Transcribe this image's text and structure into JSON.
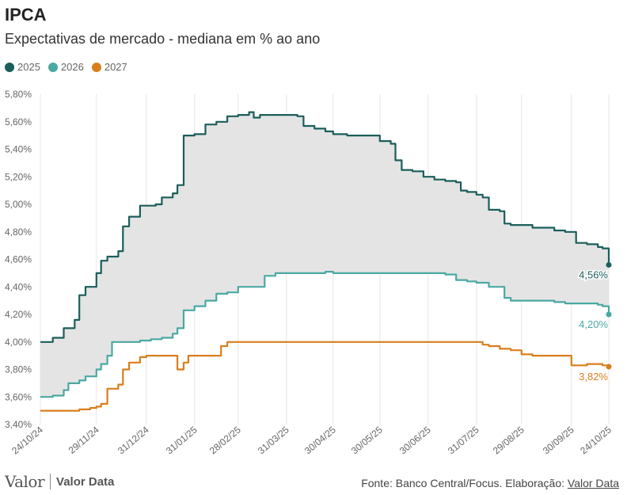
{
  "header": {
    "title": "IPCA",
    "subtitle": "Expectativas de mercado - mediana em % ao ano"
  },
  "legend": [
    {
      "label": "2025",
      "color": "#1b5e5a"
    },
    {
      "label": "2026",
      "color": "#4aa8a2"
    },
    {
      "label": "2027",
      "color": "#d97e1c"
    }
  ],
  "footer": {
    "logo_text": "Valor",
    "logo_brand": "Valor Data",
    "source_prefix": "Fonte: Banco Central/Focus. Elaboração: ",
    "source_link": "Valor Data"
  },
  "chart_data": {
    "type": "line",
    "title": "IPCA",
    "subtitle": "Expectativas de mercado - mediana em % ao ano",
    "xlabel": "",
    "ylabel": "",
    "ylim": [
      3.4,
      5.8
    ],
    "yticks": [
      3.4,
      3.6,
      3.8,
      4.0,
      4.2,
      4.4,
      4.6,
      4.8,
      5.0,
      5.2,
      5.4,
      5.6,
      5.8
    ],
    "ytick_labels": [
      "3,40%",
      "3,60%",
      "3,80%",
      "4,00%",
      "4,20%",
      "4,40%",
      "4,60%",
      "4,80%",
      "5,00%",
      "5,20%",
      "5,40%",
      "5,60%",
      "5,80%"
    ],
    "xlim": [
      "2024-10-24",
      "2025-10-24"
    ],
    "xticks": [
      "2024-10-24",
      "2024-11-29",
      "2024-12-31",
      "2025-01-31",
      "2025-02-28",
      "2025-03-31",
      "2025-04-30",
      "2025-05-30",
      "2025-06-30",
      "2025-07-31",
      "2025-08-29",
      "2025-09-30",
      "2025-10-24"
    ],
    "xtick_labels": [
      "24/10/24",
      "29/11/24",
      "31/12/24",
      "31/01/25",
      "28/02/25",
      "31/03/25",
      "30/04/25",
      "30/05/25",
      "30/06/25",
      "31/07/25",
      "29/08/25",
      "30/09/25",
      "24/10/25"
    ],
    "grid": "vertical",
    "band_between": [
      "2025",
      "2026"
    ],
    "band_color": "#e4e4e4",
    "series": [
      {
        "name": "2025",
        "color": "#1b5e5a",
        "end_label": "4,56%",
        "points": [
          [
            "2024-10-24",
            4.0
          ],
          [
            "2024-11-01",
            4.03
          ],
          [
            "2024-11-08",
            4.1
          ],
          [
            "2024-11-15",
            4.16
          ],
          [
            "2024-11-18",
            4.34
          ],
          [
            "2024-11-22",
            4.4
          ],
          [
            "2024-11-29",
            4.5
          ],
          [
            "2024-12-02",
            4.59
          ],
          [
            "2024-12-06",
            4.62
          ],
          [
            "2024-12-13",
            4.66
          ],
          [
            "2024-12-16",
            4.84
          ],
          [
            "2024-12-20",
            4.91
          ],
          [
            "2024-12-27",
            4.99
          ],
          [
            "2024-12-31",
            4.99
          ],
          [
            "2025-01-06",
            5.0
          ],
          [
            "2025-01-10",
            5.05
          ],
          [
            "2025-01-17",
            5.08
          ],
          [
            "2025-01-20",
            5.14
          ],
          [
            "2025-01-24",
            5.5
          ],
          [
            "2025-01-31",
            5.51
          ],
          [
            "2025-02-07",
            5.58
          ],
          [
            "2025-02-14",
            5.6
          ],
          [
            "2025-02-21",
            5.64
          ],
          [
            "2025-02-28",
            5.65
          ],
          [
            "2025-03-07",
            5.67
          ],
          [
            "2025-03-10",
            5.63
          ],
          [
            "2025-03-14",
            5.65
          ],
          [
            "2025-03-21",
            5.65
          ],
          [
            "2025-03-31",
            5.65
          ],
          [
            "2025-04-07",
            5.64
          ],
          [
            "2025-04-11",
            5.57
          ],
          [
            "2025-04-18",
            5.55
          ],
          [
            "2025-04-25",
            5.53
          ],
          [
            "2025-04-30",
            5.51
          ],
          [
            "2025-05-09",
            5.5
          ],
          [
            "2025-05-16",
            5.5
          ],
          [
            "2025-05-23",
            5.5
          ],
          [
            "2025-05-30",
            5.46
          ],
          [
            "2025-06-06",
            5.44
          ],
          [
            "2025-06-09",
            5.32
          ],
          [
            "2025-06-13",
            5.25
          ],
          [
            "2025-06-20",
            5.24
          ],
          [
            "2025-06-27",
            5.2
          ],
          [
            "2025-06-30",
            5.2
          ],
          [
            "2025-07-04",
            5.18
          ],
          [
            "2025-07-11",
            5.17
          ],
          [
            "2025-07-18",
            5.16
          ],
          [
            "2025-07-21",
            5.1
          ],
          [
            "2025-07-25",
            5.09
          ],
          [
            "2025-07-31",
            5.07
          ],
          [
            "2025-08-04",
            5.05
          ],
          [
            "2025-08-08",
            4.96
          ],
          [
            "2025-08-15",
            4.95
          ],
          [
            "2025-08-18",
            4.86
          ],
          [
            "2025-08-22",
            4.85
          ],
          [
            "2025-08-29",
            4.85
          ],
          [
            "2025-09-05",
            4.83
          ],
          [
            "2025-09-12",
            4.83
          ],
          [
            "2025-09-19",
            4.81
          ],
          [
            "2025-09-26",
            4.8
          ],
          [
            "2025-09-30",
            4.8
          ],
          [
            "2025-10-03",
            4.72
          ],
          [
            "2025-10-10",
            4.71
          ],
          [
            "2025-10-17",
            4.69
          ],
          [
            "2025-10-20",
            4.68
          ],
          [
            "2025-10-24",
            4.56
          ]
        ]
      },
      {
        "name": "2026",
        "color": "#4aa8a2",
        "end_label": "4,20%",
        "points": [
          [
            "2024-10-24",
            3.6
          ],
          [
            "2024-11-01",
            3.61
          ],
          [
            "2024-11-08",
            3.65
          ],
          [
            "2024-11-11",
            3.7
          ],
          [
            "2024-11-18",
            3.72
          ],
          [
            "2024-11-22",
            3.75
          ],
          [
            "2024-11-29",
            3.8
          ],
          [
            "2024-12-02",
            3.84
          ],
          [
            "2024-12-06",
            3.9
          ],
          [
            "2024-12-09",
            4.0
          ],
          [
            "2024-12-20",
            4.0
          ],
          [
            "2024-12-27",
            4.01
          ],
          [
            "2025-01-03",
            4.02
          ],
          [
            "2025-01-10",
            4.03
          ],
          [
            "2025-01-17",
            4.06
          ],
          [
            "2025-01-20",
            4.1
          ],
          [
            "2025-01-24",
            4.23
          ],
          [
            "2025-01-31",
            4.26
          ],
          [
            "2025-02-07",
            4.3
          ],
          [
            "2025-02-14",
            4.35
          ],
          [
            "2025-02-21",
            4.36
          ],
          [
            "2025-02-28",
            4.4
          ],
          [
            "2025-03-14",
            4.4
          ],
          [
            "2025-03-17",
            4.48
          ],
          [
            "2025-03-24",
            4.5
          ],
          [
            "2025-03-31",
            4.5
          ],
          [
            "2025-04-25",
            4.51
          ],
          [
            "2025-04-30",
            4.5
          ],
          [
            "2025-05-30",
            4.5
          ],
          [
            "2025-06-30",
            4.5
          ],
          [
            "2025-07-11",
            4.49
          ],
          [
            "2025-07-18",
            4.45
          ],
          [
            "2025-07-25",
            4.44
          ],
          [
            "2025-07-31",
            4.43
          ],
          [
            "2025-08-08",
            4.4
          ],
          [
            "2025-08-15",
            4.4
          ],
          [
            "2025-08-18",
            4.32
          ],
          [
            "2025-08-22",
            4.3
          ],
          [
            "2025-08-29",
            4.3
          ],
          [
            "2025-09-12",
            4.3
          ],
          [
            "2025-09-19",
            4.29
          ],
          [
            "2025-09-26",
            4.28
          ],
          [
            "2025-09-30",
            4.28
          ],
          [
            "2025-10-17",
            4.27
          ],
          [
            "2025-10-20",
            4.26
          ],
          [
            "2025-10-24",
            4.2
          ]
        ]
      },
      {
        "name": "2027",
        "color": "#d97e1c",
        "end_label": "3,82%",
        "points": [
          [
            "2024-10-24",
            3.5
          ],
          [
            "2024-11-15",
            3.5
          ],
          [
            "2024-11-18",
            3.51
          ],
          [
            "2024-11-22",
            3.51
          ],
          [
            "2024-11-25",
            3.52
          ],
          [
            "2024-11-29",
            3.53
          ],
          [
            "2024-12-02",
            3.55
          ],
          [
            "2024-12-06",
            3.66
          ],
          [
            "2024-12-13",
            3.69
          ],
          [
            "2024-12-16",
            3.8
          ],
          [
            "2024-12-20",
            3.85
          ],
          [
            "2024-12-27",
            3.89
          ],
          [
            "2024-12-31",
            3.9
          ],
          [
            "2025-01-17",
            3.9
          ],
          [
            "2025-01-20",
            3.8
          ],
          [
            "2025-01-24",
            3.85
          ],
          [
            "2025-01-27",
            3.9
          ],
          [
            "2025-02-14",
            3.9
          ],
          [
            "2025-02-17",
            3.97
          ],
          [
            "2025-02-21",
            4.0
          ],
          [
            "2025-07-31",
            4.0
          ],
          [
            "2025-08-04",
            3.98
          ],
          [
            "2025-08-08",
            3.97
          ],
          [
            "2025-08-15",
            3.95
          ],
          [
            "2025-08-22",
            3.94
          ],
          [
            "2025-08-29",
            3.91
          ],
          [
            "2025-09-05",
            3.9
          ],
          [
            "2025-09-26",
            3.9
          ],
          [
            "2025-09-30",
            3.83
          ],
          [
            "2025-10-10",
            3.84
          ],
          [
            "2025-10-20",
            3.83
          ],
          [
            "2025-10-24",
            3.82
          ]
        ]
      }
    ]
  }
}
